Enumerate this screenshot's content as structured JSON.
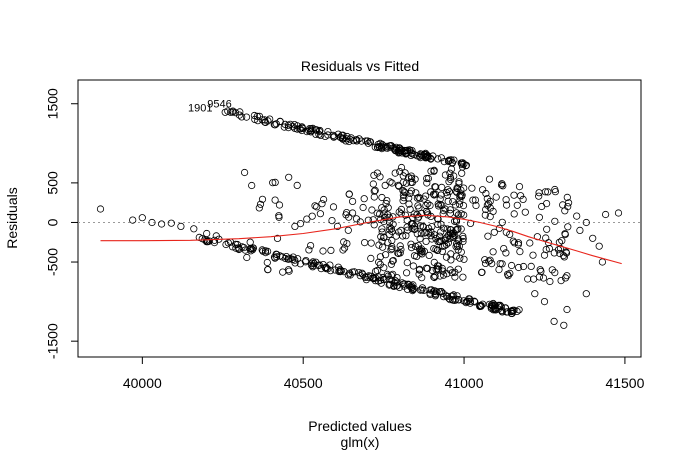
{
  "chart_data": {
    "type": "scatter",
    "title": "Residuals vs Fitted",
    "xlabel": "Predicted values",
    "xlabel2": "glm(x)",
    "ylabel": "Residuals",
    "xlim": [
      39800,
      41550
    ],
    "ylim": [
      -1700,
      1800
    ],
    "x_ticks": [
      40000,
      40500,
      41000,
      41500
    ],
    "y_ticks": [
      1500,
      500,
      0,
      -500,
      -1500
    ],
    "y_tick_labels": [
      "1500",
      "500",
      "0",
      "-500",
      "-1500"
    ],
    "grid": false,
    "reference_line": {
      "y": 0,
      "style": "dotted",
      "color": "#9a9a9a"
    },
    "smooth_line": {
      "color": "#e8251c",
      "points": [
        [
          39870,
          -230
        ],
        [
          40000,
          -230
        ],
        [
          40150,
          -225
        ],
        [
          40300,
          -205
        ],
        [
          40400,
          -180
        ],
        [
          40500,
          -140
        ],
        [
          40600,
          -80
        ],
        [
          40700,
          0
        ],
        [
          40800,
          70
        ],
        [
          40880,
          90
        ],
        [
          40950,
          70
        ],
        [
          41000,
          40
        ],
        [
          41050,
          0
        ],
        [
          41100,
          -50
        ],
        [
          41150,
          -110
        ],
        [
          41200,
          -180
        ],
        [
          41250,
          -240
        ],
        [
          41300,
          -300
        ],
        [
          41350,
          -360
        ],
        [
          41400,
          -420
        ],
        [
          41490,
          -520
        ]
      ]
    },
    "point_labels": [
      {
        "text": "1901",
        "x": 40180,
        "y": 1405
      },
      {
        "text": "9546",
        "x": 40240,
        "y": 1455
      }
    ],
    "series": [
      {
        "marker": "open-circle",
        "bands": [
          {
            "x0": 40240,
            "x1": 41010,
            "y_at_x0": 1420,
            "y_at_x1": 720,
            "n": 180,
            "spread": 35
          },
          {
            "x0": 40170,
            "x1": 41180,
            "y_at_x0": -180,
            "y_at_x1": -1150,
            "n": 220,
            "spread": 40
          },
          {
            "x0": 40500,
            "x1": 41000,
            "y_at_x0": 0,
            "y_at_x1": 0,
            "n": 90,
            "spread": 380
          },
          {
            "x0": 40700,
            "x1": 41000,
            "y_at_x0": 0,
            "y_at_x1": 0,
            "n": 260,
            "spread": 700
          },
          {
            "x0": 41000,
            "x1": 41330,
            "y_at_x0": 0,
            "y_at_x1": -200,
            "n": 110,
            "spread": 600
          },
          {
            "x0": 40300,
            "x1": 40500,
            "y_at_x0": 0,
            "y_at_x1": 0,
            "n": 25,
            "spread": 650
          }
        ],
        "extra_points": [
          [
            39870,
            170
          ],
          [
            39970,
            30
          ],
          [
            40000,
            60
          ],
          [
            40030,
            0
          ],
          [
            40060,
            -20
          ],
          [
            40090,
            -10
          ],
          [
            40120,
            -50
          ],
          [
            40160,
            -80
          ],
          [
            40200,
            -140
          ],
          [
            40230,
            -170
          ],
          [
            41350,
            80
          ],
          [
            41380,
            0
          ],
          [
            41420,
            -300
          ],
          [
            41430,
            -500
          ],
          [
            41440,
            100
          ],
          [
            41480,
            120
          ],
          [
            41400,
            -200
          ],
          [
            41360,
            -100
          ],
          [
            41320,
            -1100
          ],
          [
            41310,
            -1300
          ],
          [
            41280,
            -1250
          ],
          [
            41250,
            -1000
          ],
          [
            41220,
            -900
          ],
          [
            41380,
            -900
          ]
        ]
      }
    ]
  }
}
